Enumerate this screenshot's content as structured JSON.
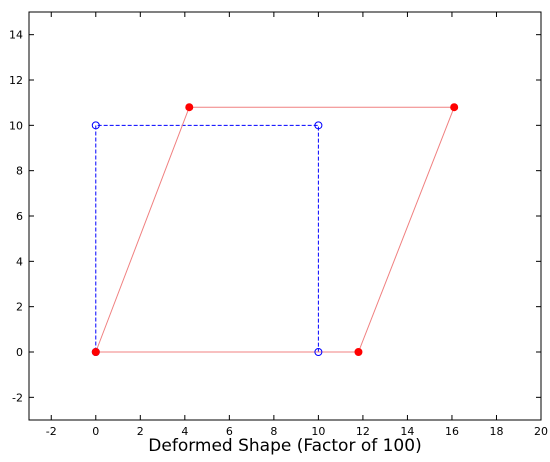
{
  "chart_data": {
    "type": "line",
    "title": "",
    "xlabel": "Deformed Shape (Factor of 100)",
    "ylabel": "",
    "xlim": [
      -3,
      20
    ],
    "ylim": [
      -3,
      15
    ],
    "xticks": [
      -2,
      0,
      2,
      4,
      6,
      8,
      10,
      12,
      14,
      16,
      18,
      20
    ],
    "yticks": [
      -2,
      0,
      2,
      4,
      6,
      8,
      10,
      12,
      14
    ],
    "grid": false,
    "legend": "none",
    "series": [
      {
        "style": "dashed",
        "marker": "open-circle",
        "color": "#0000ff",
        "x": [
          0,
          10,
          10,
          0,
          0
        ],
        "y": [
          0,
          0,
          10,
          10,
          0
        ]
      },
      {
        "style": "solid",
        "marker": "filled-circle",
        "color": "#ff0000",
        "line_color": "#f08080",
        "x": [
          0,
          11.8,
          16.1,
          4.2,
          0
        ],
        "y": [
          0,
          0,
          10.8,
          10.8,
          0
        ]
      }
    ]
  }
}
